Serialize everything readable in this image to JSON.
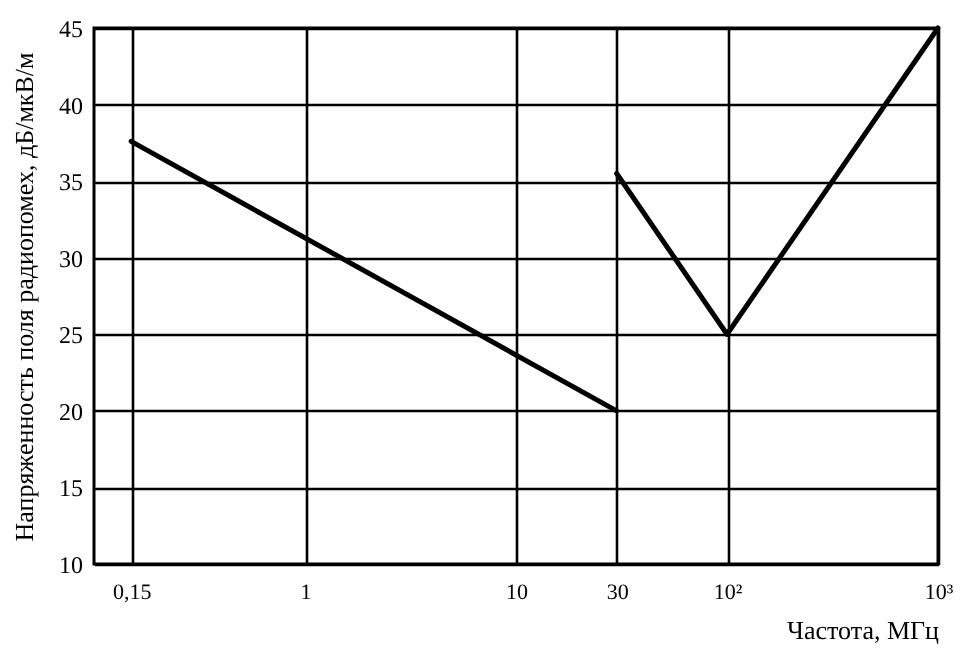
{
  "chart_data": {
    "type": "line",
    "xlabel": "Частота, МГц",
    "ylabel": "Напряженность поля радиопомех, дБ/мкВ/м",
    "series": [
      {
        "color": "#000000",
        "x": [
          0.15,
          30
        ],
        "values": [
          37.6,
          20
        ]
      },
      {
        "color": "#000000",
        "x": [
          30,
          100,
          1000
        ],
        "values": [
          35.5,
          25,
          45
        ]
      }
    ],
    "log": "x",
    "xlim": [
      0.1,
      1000
    ],
    "xticks": [
      {
        "value": 0.15,
        "label": "0,15"
      },
      1,
      10,
      30,
      {
        "value": 100,
        "label": "10²"
      },
      {
        "value": 1000,
        "label": "10³"
      }
    ],
    "ylim": [
      10,
      45
    ],
    "yticks": [
      10,
      15,
      20,
      25,
      30,
      35,
      40,
      45
    ],
    "grid": true,
    "marker": "none",
    "line_style": "solid"
  }
}
